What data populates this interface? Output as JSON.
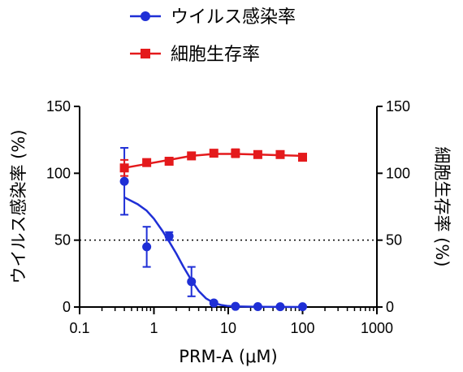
{
  "chart_data": {
    "type": "scatter",
    "xscale": "log",
    "xlim": [
      0.1,
      1000
    ],
    "xticks": [
      "0.1",
      "1",
      "10",
      "100",
      "1000"
    ],
    "xlabel": "PRM-A (μM)",
    "ylabel_left": "ウイルス感染率 (%)",
    "ylabel_right": "細胞生存率 (%)",
    "ylim_left": [
      0,
      150
    ],
    "ylim_right": [
      0,
      150
    ],
    "yticks_left": [
      "0",
      "50",
      "100",
      "150"
    ],
    "yticks_right": [
      "0",
      "50",
      "100",
      "150"
    ],
    "reference_line": {
      "y": 50,
      "style": "dotted"
    },
    "legend_position": "top-center",
    "series": [
      {
        "name": "ウイルス感染率",
        "color": "#1f2fd6",
        "marker": "circle",
        "axis": "left",
        "x": [
          0.4,
          0.8,
          1.6,
          3.2,
          6.4,
          12.5,
          25,
          50,
          100
        ],
        "y": [
          94,
          45,
          53,
          19,
          3,
          0.5,
          0.3,
          0.2,
          0.2
        ],
        "err": [
          25,
          15,
          3,
          11,
          1,
          0.5,
          0.3,
          0.2,
          0.2
        ],
        "fit": {
          "type": "sigmoid",
          "x": [
            0.4,
            0.6,
            0.8,
            1.0,
            1.3,
            1.6,
            2.0,
            2.5,
            3.2,
            4.0,
            5.0,
            6.4,
            8.0,
            10,
            12.5,
            25,
            50,
            100
          ],
          "y": [
            82,
            77,
            72,
            66,
            57,
            49,
            40,
            30,
            20,
            12,
            6.5,
            3,
            1.5,
            0.7,
            0.4,
            0.1,
            0.05,
            0
          ]
        }
      },
      {
        "name": "細胞生存率",
        "color": "#e41a1c",
        "marker": "square",
        "axis": "right",
        "x": [
          0.4,
          0.8,
          1.6,
          3.2,
          6.4,
          12.5,
          25,
          50,
          100
        ],
        "y": [
          104,
          108,
          109,
          113,
          115,
          115,
          114,
          114,
          112
        ],
        "err": [
          6,
          2,
          2,
          2,
          2,
          3,
          2,
          2,
          2
        ],
        "fit": {
          "type": "smooth",
          "x": [
            0.4,
            0.8,
            1.6,
            3.2,
            6.4,
            12.5,
            25,
            50,
            100
          ],
          "y": [
            104,
            107,
            110,
            113,
            114.5,
            114.5,
            114,
            113.5,
            113
          ]
        }
      }
    ]
  }
}
